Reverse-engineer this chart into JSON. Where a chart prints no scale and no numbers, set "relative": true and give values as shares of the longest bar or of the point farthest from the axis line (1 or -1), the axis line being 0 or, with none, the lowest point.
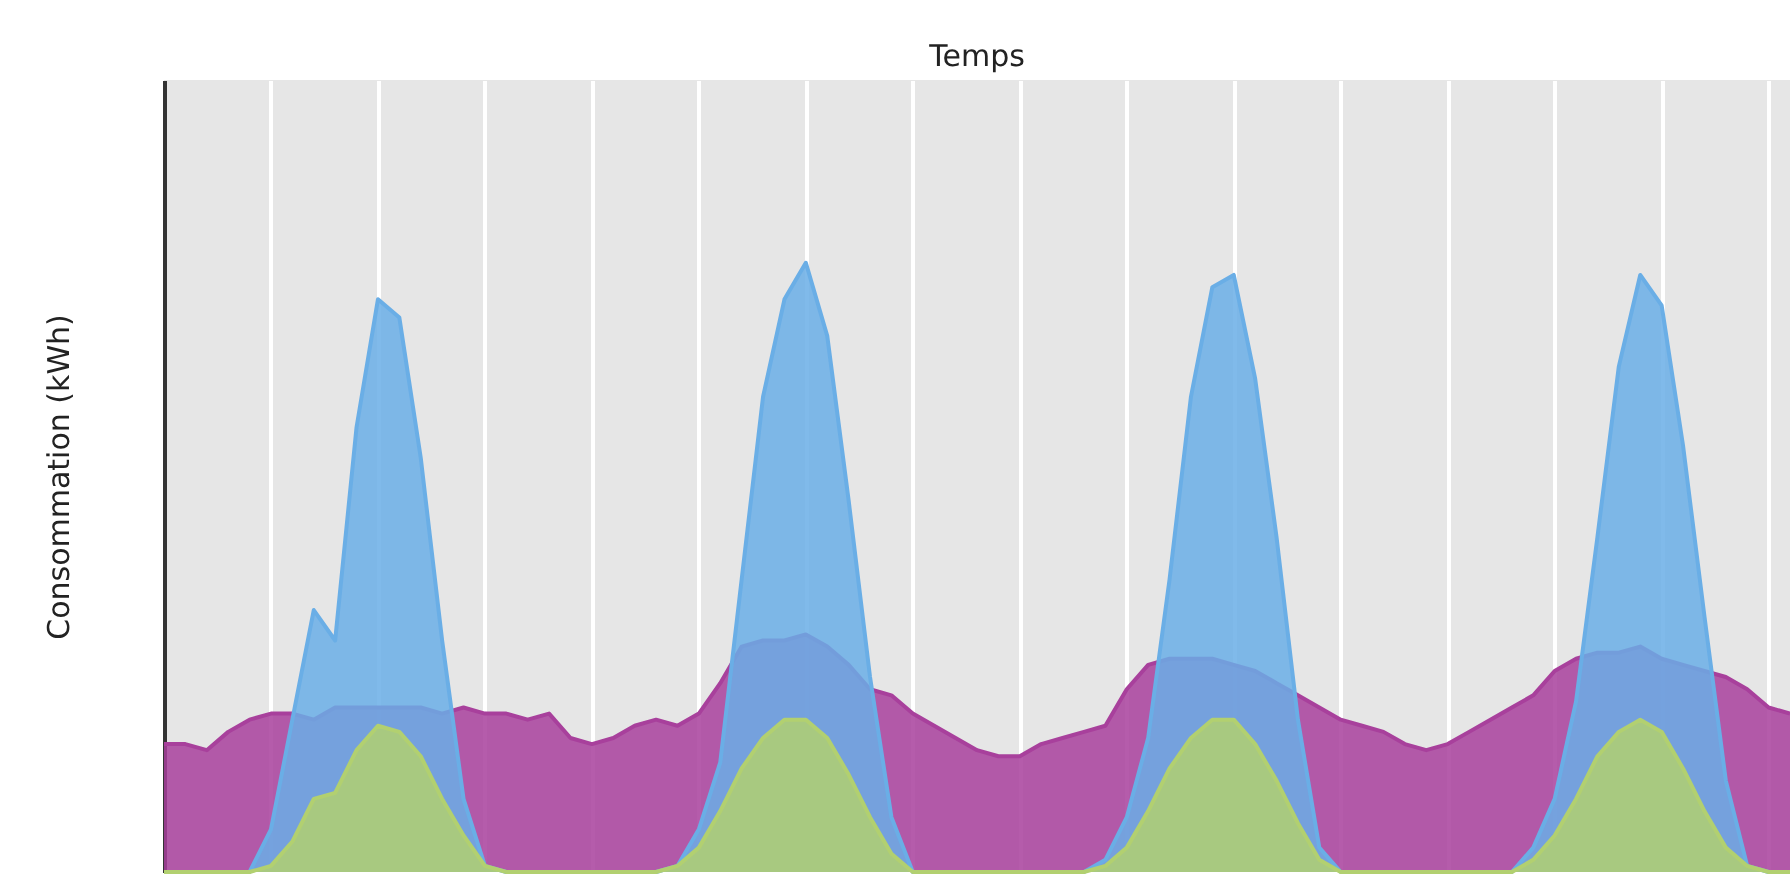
{
  "chart_data": {
    "type": "area",
    "annotations": [
      "Temps"
    ],
    "ylabel": "Consommation (kWh)",
    "relative": true,
    "grid": "x",
    "categories": [
      null,
      null,
      null,
      null,
      null,
      null,
      null,
      null,
      null,
      null,
      null,
      null,
      null,
      null,
      null,
      null,
      null,
      null,
      null,
      null,
      null,
      null,
      null,
      null,
      null,
      null,
      null,
      null,
      null,
      null,
      null,
      null,
      null,
      null,
      null,
      null,
      null,
      null,
      null,
      null,
      null,
      null,
      null,
      null,
      null,
      null,
      null,
      null,
      null,
      null,
      null,
      null,
      null,
      null,
      null,
      null,
      null,
      null,
      null,
      null,
      null,
      null,
      null,
      null,
      null,
      null,
      null,
      null,
      null,
      null,
      null,
      null,
      null,
      null,
      null,
      null,
      null
    ],
    "series": [
      {
        "color": "#a8409c",
        "values": [
          0.21,
          0.21,
          0.2,
          0.23,
          0.25,
          0.26,
          0.26,
          0.25,
          0.27,
          0.27,
          0.27,
          0.27,
          0.27,
          0.26,
          0.27,
          0.26,
          0.26,
          0.25,
          0.26,
          0.22,
          0.21,
          0.22,
          0.24,
          0.25,
          0.24,
          0.26,
          0.31,
          0.37,
          0.38,
          0.38,
          0.39,
          0.37,
          0.34,
          0.3,
          0.29,
          0.26,
          0.24,
          0.22,
          0.2,
          0.19,
          0.19,
          0.21,
          0.22,
          0.23,
          0.24,
          0.3,
          0.34,
          0.35,
          0.35,
          0.35,
          0.34,
          0.33,
          0.31,
          0.29,
          0.27,
          0.25,
          0.24,
          0.23,
          0.21,
          0.2,
          0.21,
          0.23,
          0.25,
          0.27,
          0.29,
          0.33,
          0.35,
          0.36,
          0.36,
          0.37,
          0.35,
          0.34,
          0.33,
          0.32,
          0.3,
          0.27,
          0.26
        ]
      },
      {
        "color": "#6aaee6",
        "values": [
          0,
          0,
          0,
          0,
          0,
          0.07,
          0.25,
          0.43,
          0.38,
          0.73,
          0.94,
          0.91,
          0.68,
          0.38,
          0.12,
          0.01,
          0,
          0,
          0,
          0,
          0,
          0,
          0,
          0,
          0.01,
          0.07,
          0.18,
          0.48,
          0.78,
          0.94,
          1,
          0.88,
          0.61,
          0.32,
          0.09,
          0,
          0,
          0,
          0,
          0,
          0,
          0,
          0,
          0,
          0.02,
          0.09,
          0.22,
          0.48,
          0.78,
          0.96,
          0.98,
          0.81,
          0.55,
          0.25,
          0.04,
          0,
          0,
          0,
          0,
          0,
          0,
          0,
          0,
          0,
          0.04,
          0.12,
          0.28,
          0.55,
          0.83,
          0.98,
          0.93,
          0.7,
          0.42,
          0.15,
          0.01,
          0,
          0
        ]
      },
      {
        "color": "#b2d070",
        "values": [
          0,
          0,
          0,
          0,
          0,
          0.01,
          0.05,
          0.12,
          0.13,
          0.2,
          0.24,
          0.23,
          0.19,
          0.12,
          0.06,
          0.01,
          0,
          0,
          0,
          0,
          0,
          0,
          0,
          0,
          0.01,
          0.04,
          0.1,
          0.17,
          0.22,
          0.25,
          0.25,
          0.22,
          0.16,
          0.09,
          0.03,
          0,
          0,
          0,
          0,
          0,
          0,
          0,
          0,
          0,
          0.01,
          0.04,
          0.1,
          0.17,
          0.22,
          0.25,
          0.25,
          0.21,
          0.15,
          0.08,
          0.02,
          0,
          0,
          0,
          0,
          0,
          0,
          0,
          0,
          0,
          0.02,
          0.06,
          0.12,
          0.19,
          0.23,
          0.25,
          0.23,
          0.17,
          0.1,
          0.04,
          0.01,
          0,
          0
        ]
      }
    ]
  }
}
